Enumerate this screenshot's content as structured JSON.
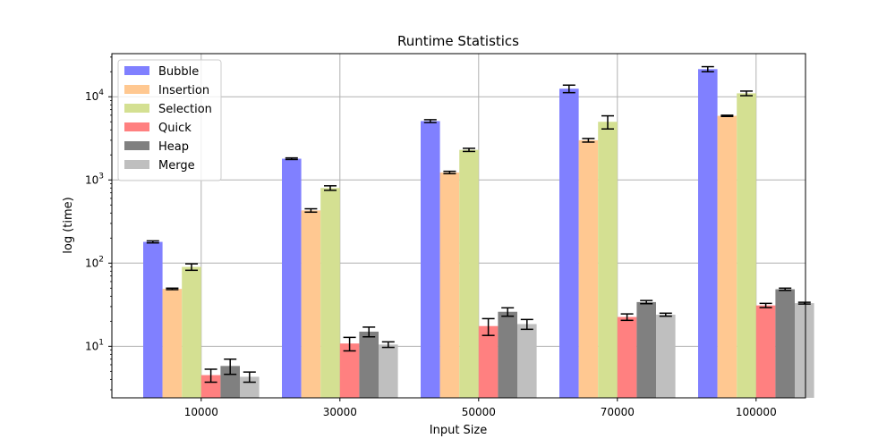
{
  "chart_data": {
    "type": "bar",
    "title": "Runtime Statistics",
    "xlabel": "Input Size",
    "ylabel": "log (time)",
    "yscale": "log",
    "ylim": [
      2.4,
      33000
    ],
    "grid": true,
    "legend_position": "top-left",
    "categories": [
      "10000",
      "30000",
      "50000",
      "70000",
      "100000"
    ],
    "y_ticks": [
      {
        "value": 10,
        "base": "10",
        "exp": "1"
      },
      {
        "value": 100,
        "base": "10",
        "exp": "2"
      },
      {
        "value": 1000,
        "base": "10",
        "exp": "3"
      },
      {
        "value": 10000,
        "base": "10",
        "exp": "4"
      }
    ],
    "series": [
      {
        "name": "Bubble",
        "color": "#8080ff",
        "values": [
          180,
          1800,
          5100,
          12500,
          21500
        ],
        "errors": [
          5,
          40,
          200,
          1300,
          1500
        ]
      },
      {
        "name": "Insertion",
        "color": "#ffc891",
        "values": [
          49,
          430,
          1230,
          3000,
          5900
        ],
        "errors": [
          1,
          20,
          40,
          150,
          100
        ]
      },
      {
        "name": "Selection",
        "color": "#d4e092",
        "values": [
          90,
          800,
          2300,
          5000,
          11000
        ],
        "errors": [
          8,
          50,
          100,
          900,
          700
        ]
      },
      {
        "name": "Quick",
        "color": "#ff8080",
        "values": [
          4.5,
          10.8,
          17.5,
          22.5,
          31
        ],
        "errors": [
          0.8,
          2,
          4,
          2,
          1.8
        ]
      },
      {
        "name": "Heap",
        "color": "#808080",
        "values": [
          5.8,
          15,
          26,
          34,
          48.5
        ],
        "errors": [
          1.2,
          2,
          3,
          1.5,
          1.5
        ]
      },
      {
        "name": "Merge",
        "color": "#bfbfbf",
        "values": [
          4.3,
          10.5,
          18.5,
          24,
          33
        ],
        "errors": [
          0.6,
          0.8,
          2.5,
          1,
          0.8
        ]
      }
    ]
  }
}
